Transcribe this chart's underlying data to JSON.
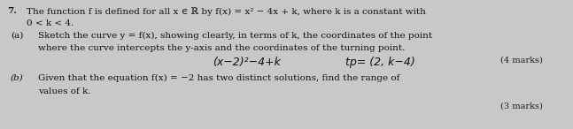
{
  "background_color": "#c8c8c8",
  "question_number": "7.",
  "line1_a": "The function f is defined for all x ∈ ℝ by f(x) = x² − 4x + k, where k is a constant with",
  "line1_b": "0 < k < 4.",
  "part_a_label": "(a)",
  "part_a_text1": "Sketch the curve y = f(x), showing clearly, in terms of k, the coordinates of the point",
  "part_a_text2": "where the curve intercepts the y-axis and the coordinates of the turning point.",
  "part_a_hw1": "(x−2)²−4+k",
  "part_a_hw2": "tp= (2, k−4)",
  "part_a_marks": "(4 marks)",
  "part_b_label": "(b)",
  "part_b_text1": "Given that the equation f(x) = −2 has two distinct solutions, find the range of",
  "part_b_text2": "values of k.",
  "part_b_marks": "(3 marks)",
  "font_size_main": 7.5,
  "font_size_marks": 7.0,
  "font_size_handwritten": 9.0,
  "text_color": "#111111",
  "marks_color": "#222222"
}
